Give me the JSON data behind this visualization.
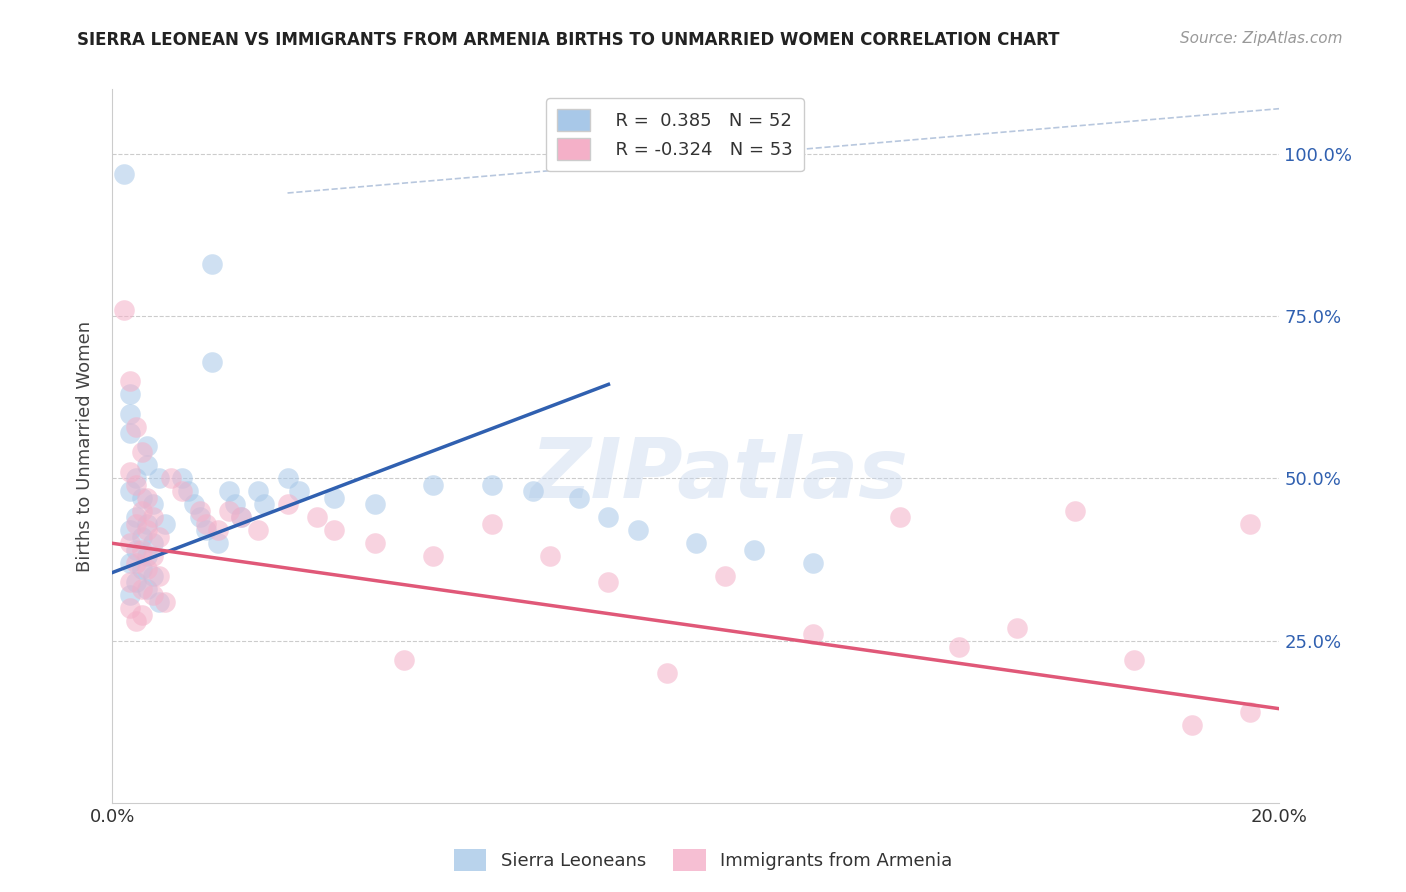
{
  "title": "SIERRA LEONEAN VS IMMIGRANTS FROM ARMENIA BIRTHS TO UNMARRIED WOMEN CORRELATION CHART",
  "source": "Source: ZipAtlas.com",
  "ylabel": "Births to Unmarried Women",
  "xmin": 0.0,
  "xmax": 0.2,
  "ymin": 0.0,
  "ymax": 1.1,
  "ytick_positions": [
    0.25,
    0.5,
    0.75,
    1.0
  ],
  "ytick_labels": [
    "25.0%",
    "50.0%",
    "75.0%",
    "100.0%"
  ],
  "blue_color": "#a8c8e8",
  "pink_color": "#f4b0c8",
  "blue_line_color": "#3060b0",
  "pink_line_color": "#e05878",
  "dash_line_color": "#9ab0d0",
  "watermark_text": "ZIPatlas",
  "blue_line_x": [
    0.0,
    0.085
  ],
  "blue_line_y": [
    0.355,
    0.645
  ],
  "pink_line_x": [
    0.0,
    0.2
  ],
  "pink_line_y": [
    0.4,
    0.145
  ],
  "dash_line_x": [
    0.03,
    0.2
  ],
  "dash_line_y": [
    0.94,
    1.07
  ],
  "blue_scatter": [
    [
      0.002,
      0.97
    ],
    [
      0.017,
      0.83
    ],
    [
      0.017,
      0.68
    ],
    [
      0.003,
      0.63
    ],
    [
      0.003,
      0.6
    ],
    [
      0.003,
      0.57
    ],
    [
      0.006,
      0.55
    ],
    [
      0.006,
      0.52
    ],
    [
      0.004,
      0.5
    ],
    [
      0.008,
      0.5
    ],
    [
      0.003,
      0.48
    ],
    [
      0.005,
      0.47
    ],
    [
      0.007,
      0.46
    ],
    [
      0.004,
      0.44
    ],
    [
      0.006,
      0.43
    ],
    [
      0.009,
      0.43
    ],
    [
      0.003,
      0.42
    ],
    [
      0.005,
      0.41
    ],
    [
      0.007,
      0.4
    ],
    [
      0.004,
      0.39
    ],
    [
      0.006,
      0.38
    ],
    [
      0.003,
      0.37
    ],
    [
      0.005,
      0.36
    ],
    [
      0.007,
      0.35
    ],
    [
      0.004,
      0.34
    ],
    [
      0.006,
      0.33
    ],
    [
      0.003,
      0.32
    ],
    [
      0.008,
      0.31
    ],
    [
      0.012,
      0.5
    ],
    [
      0.013,
      0.48
    ],
    [
      0.014,
      0.46
    ],
    [
      0.015,
      0.44
    ],
    [
      0.016,
      0.42
    ],
    [
      0.018,
      0.4
    ],
    [
      0.02,
      0.48
    ],
    [
      0.021,
      0.46
    ],
    [
      0.022,
      0.44
    ],
    [
      0.025,
      0.48
    ],
    [
      0.026,
      0.46
    ],
    [
      0.03,
      0.5
    ],
    [
      0.032,
      0.48
    ],
    [
      0.038,
      0.47
    ],
    [
      0.045,
      0.46
    ],
    [
      0.055,
      0.49
    ],
    [
      0.065,
      0.49
    ],
    [
      0.072,
      0.48
    ],
    [
      0.08,
      0.47
    ],
    [
      0.085,
      0.44
    ],
    [
      0.09,
      0.42
    ],
    [
      0.1,
      0.4
    ],
    [
      0.11,
      0.39
    ],
    [
      0.12,
      0.37
    ]
  ],
  "pink_scatter": [
    [
      0.002,
      0.76
    ],
    [
      0.003,
      0.65
    ],
    [
      0.004,
      0.58
    ],
    [
      0.005,
      0.54
    ],
    [
      0.003,
      0.51
    ],
    [
      0.004,
      0.49
    ],
    [
      0.006,
      0.47
    ],
    [
      0.005,
      0.45
    ],
    [
      0.007,
      0.44
    ],
    [
      0.004,
      0.43
    ],
    [
      0.006,
      0.42
    ],
    [
      0.008,
      0.41
    ],
    [
      0.003,
      0.4
    ],
    [
      0.005,
      0.39
    ],
    [
      0.007,
      0.38
    ],
    [
      0.004,
      0.37
    ],
    [
      0.006,
      0.36
    ],
    [
      0.008,
      0.35
    ],
    [
      0.003,
      0.34
    ],
    [
      0.005,
      0.33
    ],
    [
      0.007,
      0.32
    ],
    [
      0.009,
      0.31
    ],
    [
      0.003,
      0.3
    ],
    [
      0.005,
      0.29
    ],
    [
      0.004,
      0.28
    ],
    [
      0.01,
      0.5
    ],
    [
      0.012,
      0.48
    ],
    [
      0.015,
      0.45
    ],
    [
      0.016,
      0.43
    ],
    [
      0.018,
      0.42
    ],
    [
      0.02,
      0.45
    ],
    [
      0.022,
      0.44
    ],
    [
      0.025,
      0.42
    ],
    [
      0.03,
      0.46
    ],
    [
      0.035,
      0.44
    ],
    [
      0.038,
      0.42
    ],
    [
      0.045,
      0.4
    ],
    [
      0.05,
      0.22
    ],
    [
      0.055,
      0.38
    ],
    [
      0.065,
      0.43
    ],
    [
      0.075,
      0.38
    ],
    [
      0.085,
      0.34
    ],
    [
      0.095,
      0.2
    ],
    [
      0.105,
      0.35
    ],
    [
      0.12,
      0.26
    ],
    [
      0.135,
      0.44
    ],
    [
      0.145,
      0.24
    ],
    [
      0.155,
      0.27
    ],
    [
      0.165,
      0.45
    ],
    [
      0.175,
      0.22
    ],
    [
      0.185,
      0.12
    ],
    [
      0.195,
      0.14
    ],
    [
      0.195,
      0.43
    ]
  ]
}
